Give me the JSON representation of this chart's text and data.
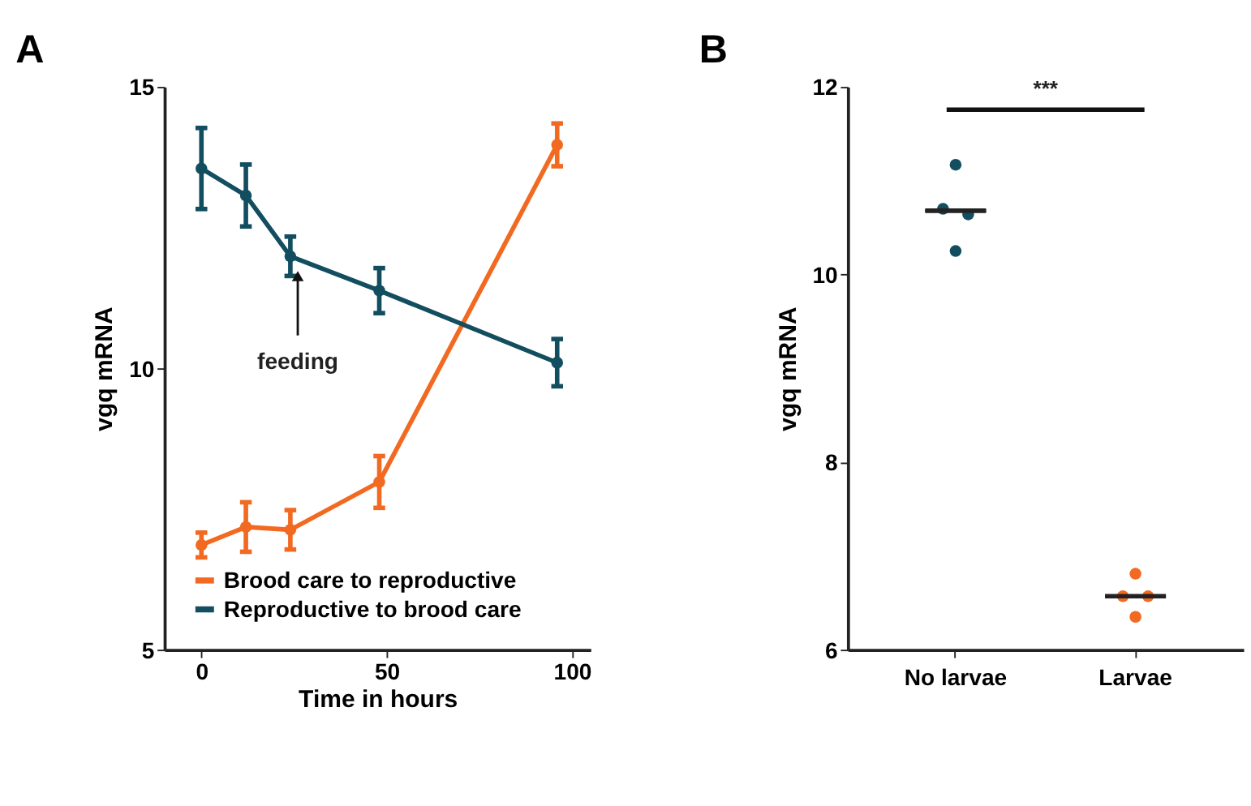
{
  "chart_data": [
    {
      "type": "line",
      "title": "A",
      "xlabel": "Time in hours",
      "ylabel": "vgq mRNA",
      "x": [
        0,
        12,
        24,
        48,
        96
      ],
      "series": [
        {
          "name": "Brood care to reproductive",
          "color": "#f26a21",
          "values": [
            6.86,
            7.18,
            7.13,
            7.98,
            13.97
          ],
          "errors": [
            0.22,
            0.44,
            0.35,
            0.46,
            0.38
          ]
        },
        {
          "name": "Reproductive to brood care",
          "color": "#124e5f",
          "values": [
            13.55,
            13.07,
            11.99,
            11.38,
            10.1
          ],
          "errors": [
            0.72,
            0.55,
            0.35,
            0.4,
            0.42
          ]
        }
      ],
      "xlim": [
        -10,
        105
      ],
      "xticks": [
        0,
        50,
        100
      ],
      "ylim": [
        5,
        15
      ],
      "yticks": [
        5,
        10,
        15
      ],
      "marker": "circle",
      "legend": "bottom left",
      "grid": false,
      "annotations": [
        {
          "text": "feeding",
          "x": 26,
          "y": 11.8
        }
      ]
    },
    {
      "type": "scatter",
      "title": "B",
      "ylabel": "vgq mRNA",
      "categories": [
        "No larvae",
        "Larvae"
      ],
      "series": [
        {
          "color": "#124e5f",
          "x": [
            "No larvae",
            "No larvae",
            "No larvae",
            "No larvae"
          ],
          "values": [
            11.17,
            10.7,
            10.64,
            10.25
          ]
        },
        {
          "color": "#f26a21",
          "x": [
            "Larvae",
            "Larvae",
            "Larvae",
            "Larvae"
          ],
          "values": [
            6.81,
            6.57,
            6.57,
            6.35
          ]
        },
        {
          "type": "box",
          "color": "#222222",
          "boxes": [
            {
              "low": 10.68,
              "q1": 10.68,
              "median": 10.68,
              "q3": 10.68,
              "high": 10.68
            },
            {
              "low": 6.57,
              "q1": 6.57,
              "median": 6.57,
              "q3": 6.57,
              "high": 6.57
            }
          ]
        }
      ],
      "ylim": [
        6,
        12
      ],
      "yticks": [
        6,
        8,
        10,
        12
      ],
      "marker": "circle",
      "grid": false,
      "annotations": [
        "***"
      ]
    }
  ]
}
